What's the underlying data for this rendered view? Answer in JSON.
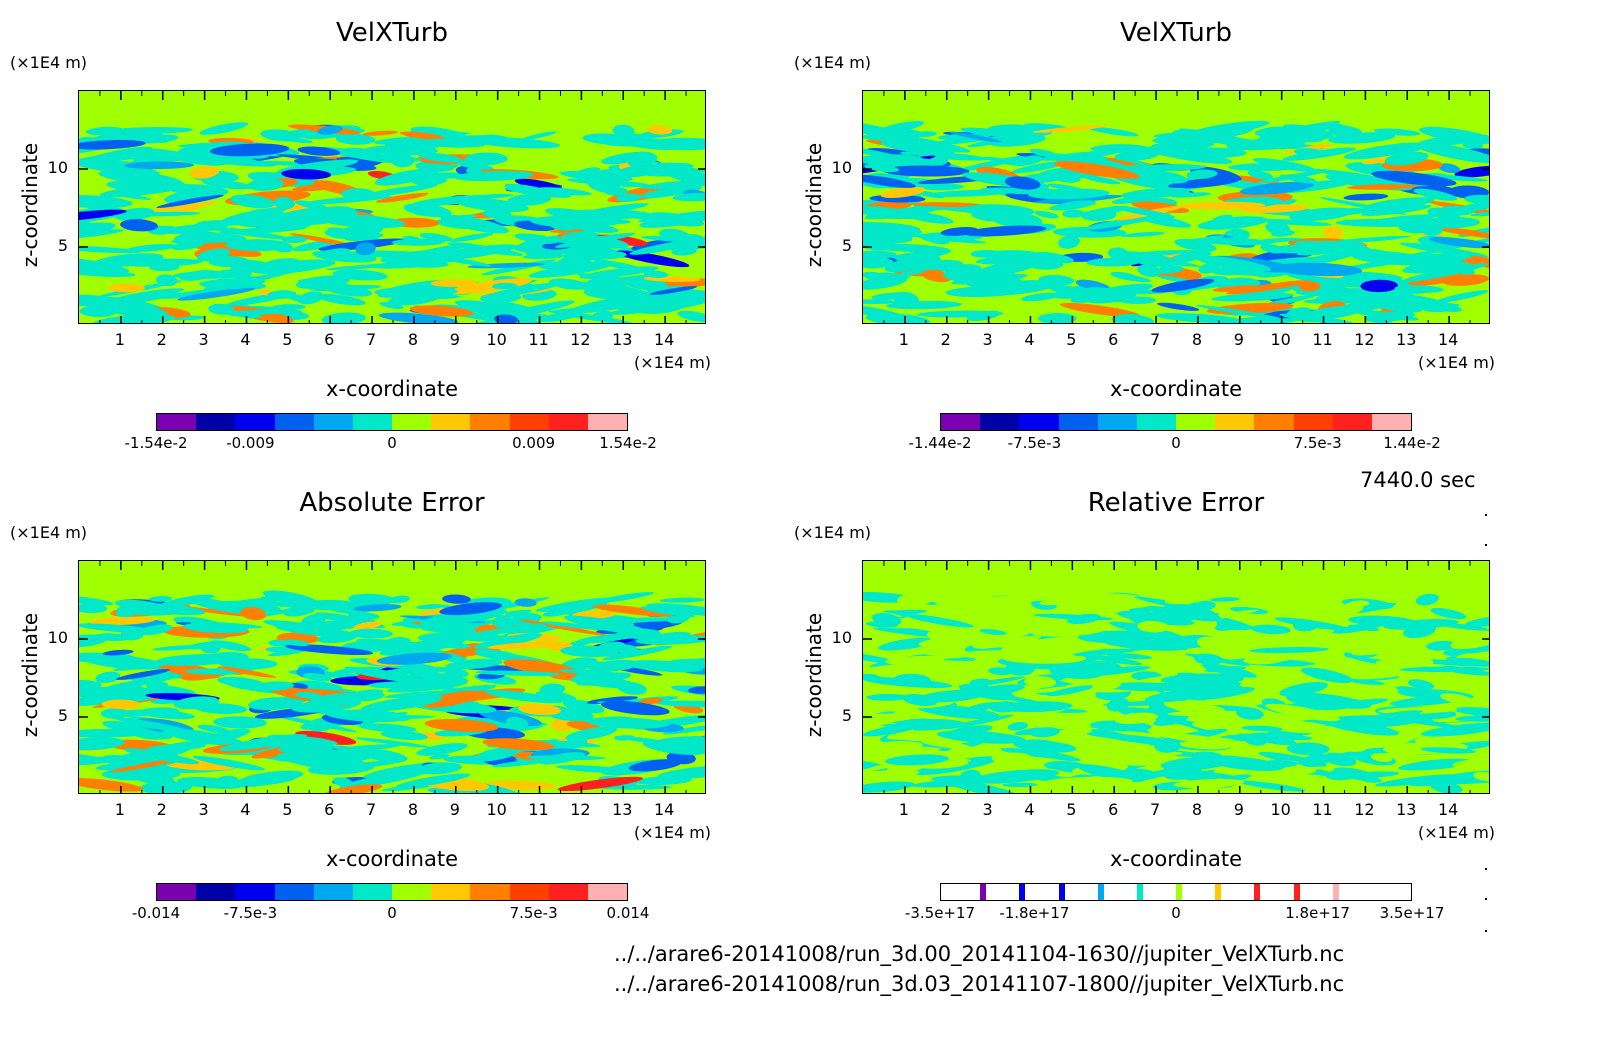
{
  "chart_data": [
    {
      "type": "heatmap",
      "title": "VelXTurb",
      "xlabel": "x-coordinate",
      "ylabel": "z-coordinate",
      "x_unit": "(×1E4 m)",
      "y_unit": "(×1E4 m)",
      "x_ticks": [
        "1",
        "2",
        "3",
        "4",
        "5",
        "6",
        "7",
        "8",
        "9",
        "10",
        "11",
        "12",
        "13",
        "14"
      ],
      "y_ticks": [
        "5",
        "10"
      ],
      "xlim": [
        0,
        15
      ],
      "ylim": [
        0,
        15
      ],
      "colorbar_labels": [
        "-1.54e-2",
        "-0.009",
        "0",
        "0.009",
        "1.54e-2"
      ],
      "colorbar_colors": [
        "#7a00b0",
        "#0000a8",
        "#0000f0",
        "#0060f0",
        "#00a8f0",
        "#00e8c8",
        "#a0ff00",
        "#ffc800",
        "#ff8000",
        "#ff4000",
        "#ff2020",
        "#ffb0b0"
      ]
    },
    {
      "type": "heatmap",
      "title": "VelXTurb",
      "xlabel": "x-coordinate",
      "ylabel": "z-coordinate",
      "x_unit": "(×1E4 m)",
      "y_unit": "(×1E4 m)",
      "x_ticks": [
        "1",
        "2",
        "3",
        "4",
        "5",
        "6",
        "7",
        "8",
        "9",
        "10",
        "11",
        "12",
        "13",
        "14"
      ],
      "y_ticks": [
        "5",
        "10"
      ],
      "xlim": [
        0,
        15
      ],
      "ylim": [
        0,
        15
      ],
      "colorbar_labels": [
        "-1.44e-2",
        "-7.5e-3",
        "0",
        "7.5e-3",
        "1.44e-2"
      ],
      "colorbar_colors": [
        "#7a00b0",
        "#0000a8",
        "#0000f0",
        "#0060f0",
        "#00a8f0",
        "#00e8c8",
        "#a0ff00",
        "#ffc800",
        "#ff8000",
        "#ff4000",
        "#ff2020",
        "#ffb0b0"
      ]
    },
    {
      "type": "heatmap",
      "title": "Absolute Error",
      "xlabel": "x-coordinate",
      "ylabel": "z-coordinate",
      "x_unit": "(×1E4 m)",
      "y_unit": "(×1E4 m)",
      "x_ticks": [
        "1",
        "2",
        "3",
        "4",
        "5",
        "6",
        "7",
        "8",
        "9",
        "10",
        "11",
        "12",
        "13",
        "14"
      ],
      "y_ticks": [
        "5",
        "10"
      ],
      "xlim": [
        0,
        15
      ],
      "ylim": [
        0,
        15
      ],
      "colorbar_labels": [
        "-0.014",
        "-7.5e-3",
        "0",
        "7.5e-3",
        "0.014"
      ],
      "colorbar_colors": [
        "#7a00b0",
        "#0000a8",
        "#0000f0",
        "#0060f0",
        "#00a8f0",
        "#00e8c8",
        "#a0ff00",
        "#ffc800",
        "#ff8000",
        "#ff4000",
        "#ff2020",
        "#ffb0b0"
      ]
    },
    {
      "type": "heatmap",
      "title": "Relative Error",
      "xlabel": "x-coordinate",
      "ylabel": "z-coordinate",
      "x_unit": "(×1E4 m)",
      "y_unit": "(×1E4 m)",
      "x_ticks": [
        "1",
        "2",
        "3",
        "4",
        "5",
        "6",
        "7",
        "8",
        "9",
        "10",
        "11",
        "12",
        "13",
        "14"
      ],
      "y_ticks": [
        "5",
        "10"
      ],
      "xlim": [
        0,
        15
      ],
      "ylim": [
        0,
        15
      ],
      "colorbar_labels": [
        "-3.5e+17",
        "-1.8e+17",
        "0",
        "1.8e+17",
        "3.5e+17"
      ],
      "colorbar_colors": [
        "#ffffff",
        "#7a00b0",
        "#0000f0",
        "#0000f0",
        "#00a8f0",
        "#00e8c8",
        "#a0ff00",
        "#ffc800",
        "#ff2020",
        "#ff2020",
        "#ffb0b0",
        "#ffffff"
      ]
    }
  ],
  "time_label": "7440.0 sec",
  "files": [
    "../../arare6-20141008/run_3d.00_20141104-1630//jupiter_VelXTurb.nc",
    "../../arare6-20141008/run_3d.03_20141107-1800//jupiter_VelXTurb.nc"
  ]
}
